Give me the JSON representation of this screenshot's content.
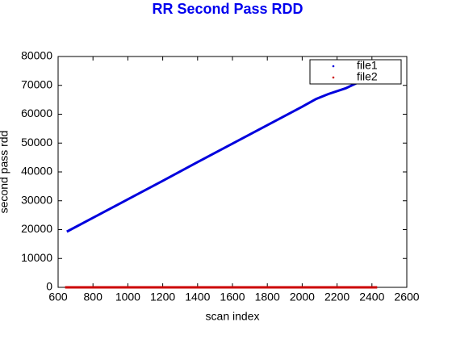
{
  "chart_data": {
    "type": "line",
    "title": "RR Second Pass RDD",
    "x_label": "scan index",
    "y_label": "second pass rdd",
    "xlim": [
      600,
      2600
    ],
    "ylim": [
      0,
      80000
    ],
    "xticks": [
      600,
      800,
      1000,
      1200,
      1400,
      1600,
      1800,
      2000,
      2200,
      2400,
      2600
    ],
    "yticks": [
      0,
      10000,
      20000,
      30000,
      40000,
      50000,
      60000,
      70000,
      80000
    ],
    "grid": false,
    "legend": "upper right",
    "series": [
      {
        "name": "file1",
        "color": "#0000dd",
        "x": [
          650,
          800,
          1000,
          1200,
          1400,
          1600,
          1800,
          2000,
          2080,
          2150,
          2250,
          2330
        ],
        "values": [
          19300,
          24100,
          30500,
          36900,
          43400,
          49800,
          56200,
          62600,
          65300,
          67000,
          69000,
          71300
        ]
      },
      {
        "name": "file2",
        "color": "#cc0000",
        "x": [
          640,
          2430
        ],
        "values": [
          0,
          0
        ]
      }
    ]
  }
}
